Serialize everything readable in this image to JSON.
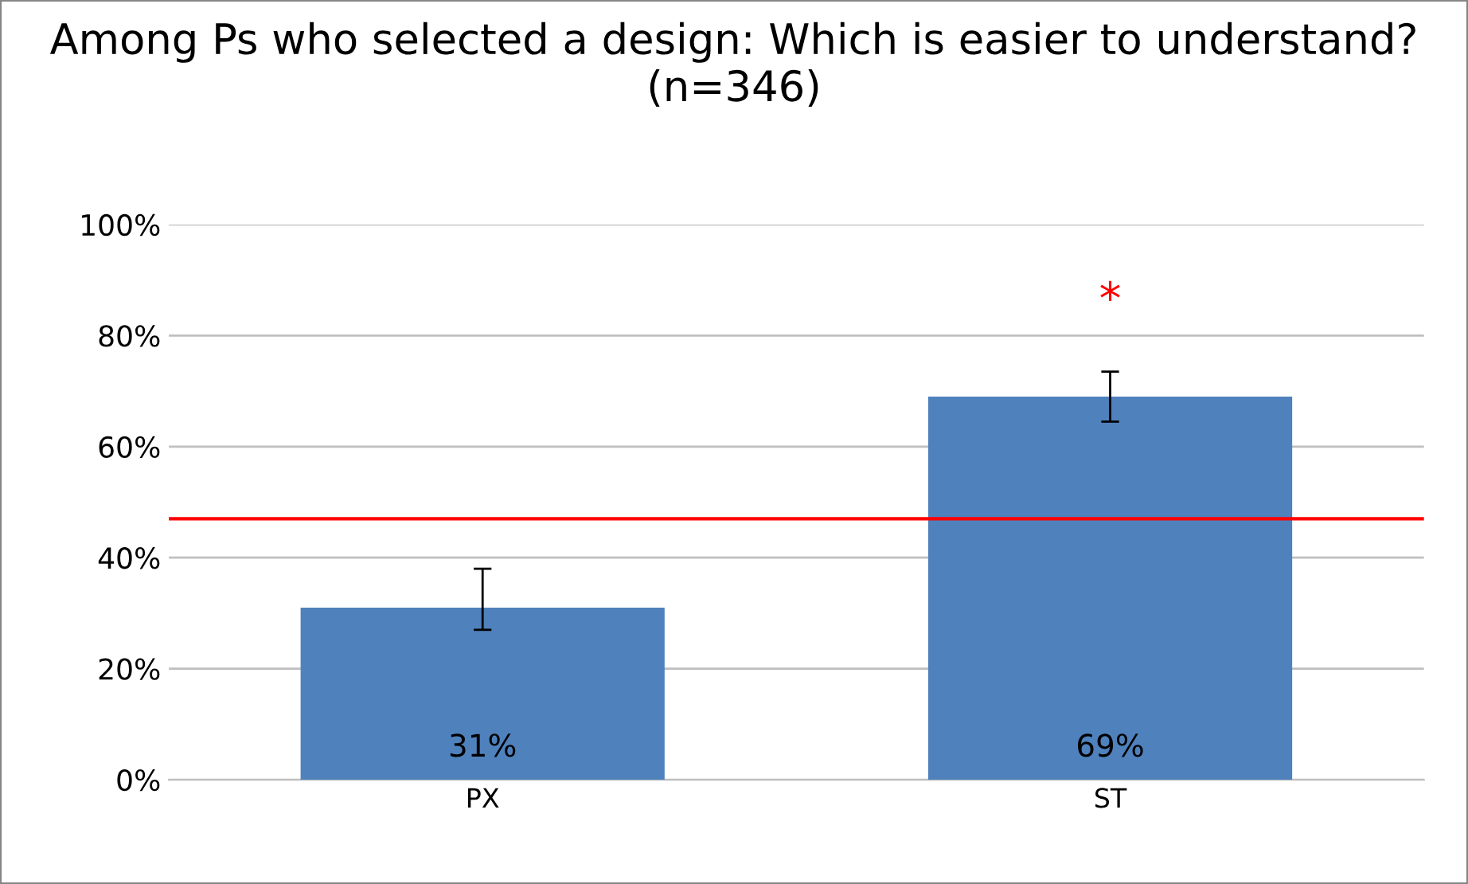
{
  "chart_data": {
    "type": "bar",
    "title": "Among Ps who selected a design: Which is easier to understand? (n=346)",
    "categories": [
      "PX",
      "ST"
    ],
    "series": [
      {
        "color": "#4f81bd",
        "values": [
          31,
          69
        ],
        "errors": [
          [
            27,
            38
          ],
          [
            64.5,
            73.5
          ]
        ],
        "value_labels": [
          "31%",
          "69%"
        ]
      }
    ],
    "ylim": [
      0,
      100
    ],
    "yticks": [
      {
        "value": 0,
        "label": "0%"
      },
      {
        "value": 20,
        "label": "20%"
      },
      {
        "value": 40,
        "label": "40%"
      },
      {
        "value": 60,
        "label": "60%"
      },
      {
        "value": 80,
        "label": "80%"
      },
      {
        "value": 100,
        "label": "100%"
      }
    ],
    "grid": "y",
    "ref_lines": [
      {
        "axis": "y",
        "value": 47,
        "color": "#ff0000"
      }
    ],
    "annotations": [
      "*"
    ]
  }
}
